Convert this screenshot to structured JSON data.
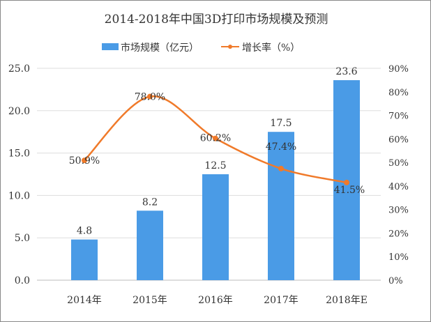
{
  "chart_data": {
    "type": "bar+line",
    "title": "2014-2018年中国3D打印市场规模及预测",
    "categories": [
      "2014年",
      "2015年",
      "2016年",
      "2017年",
      "2018年E"
    ],
    "series": [
      {
        "name": "市场规模（亿元）",
        "type": "bar",
        "axis": "left",
        "values": [
          4.8,
          8.2,
          12.5,
          17.5,
          23.6
        ],
        "labels": [
          "4.8",
          "8.2",
          "12.5",
          "17.5",
          "23.6"
        ],
        "color": "#4a9be6"
      },
      {
        "name": "增长率（%）",
        "type": "line",
        "axis": "right",
        "values": [
          50.9,
          78.0,
          60.2,
          47.4,
          41.5
        ],
        "labels": [
          "50.9%",
          "78.0%",
          "60.2%",
          "47.4%",
          "41.5%"
        ],
        "color": "#f07a2a"
      }
    ],
    "left_axis": {
      "ylim": [
        0,
        25
      ],
      "ticks": [
        "0.0",
        "5.0",
        "10.0",
        "15.0",
        "20.0",
        "25.0"
      ]
    },
    "right_axis": {
      "ylim": [
        0,
        90
      ],
      "ticks": [
        "0%",
        "10%",
        "20%",
        "30%",
        "40%",
        "50%",
        "60%",
        "70%",
        "80%",
        "90%"
      ]
    },
    "grid": true,
    "legend": "top"
  }
}
